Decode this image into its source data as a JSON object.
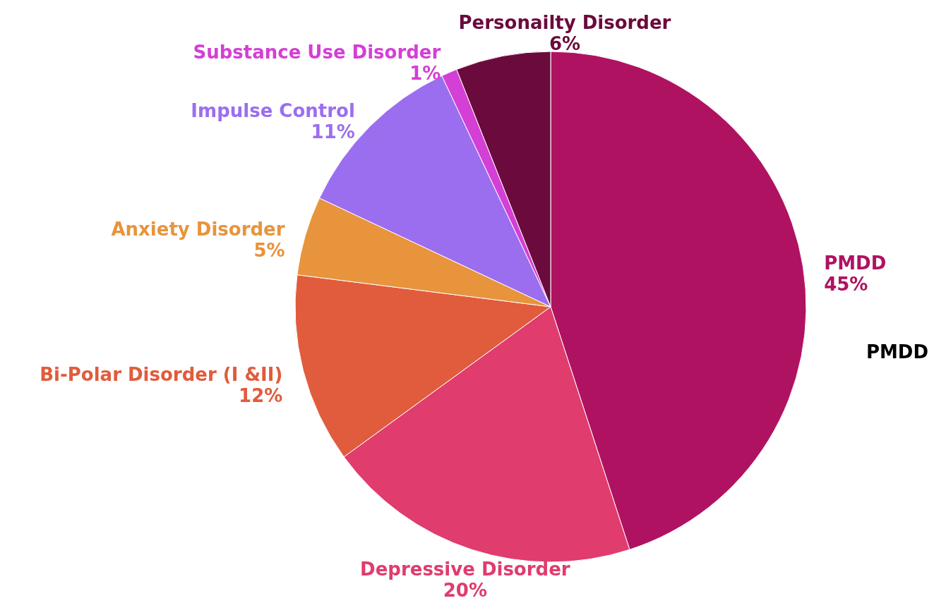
{
  "chart_data": {
    "type": "pie",
    "categories": [
      "PMDD",
      "Depressive Disorder",
      "Bi-Polar Disorder (I &II)",
      "Anxiety Disorder",
      "Impulse Control",
      "Substance Use Disorder",
      "Personailty Disorder"
    ],
    "values": [
      45,
      20,
      12,
      5,
      11,
      1,
      6
    ],
    "value_labels": [
      "45%",
      "20%",
      "12%",
      "5%",
      "11%",
      "1%",
      "6%"
    ],
    "colors": [
      "#b01262",
      "#e03c6e",
      "#e05c3c",
      "#e8943c",
      "#9b6ef0",
      "#d43fd6",
      "#6b0a3c"
    ],
    "annotations": [
      "PMDD"
    ]
  }
}
